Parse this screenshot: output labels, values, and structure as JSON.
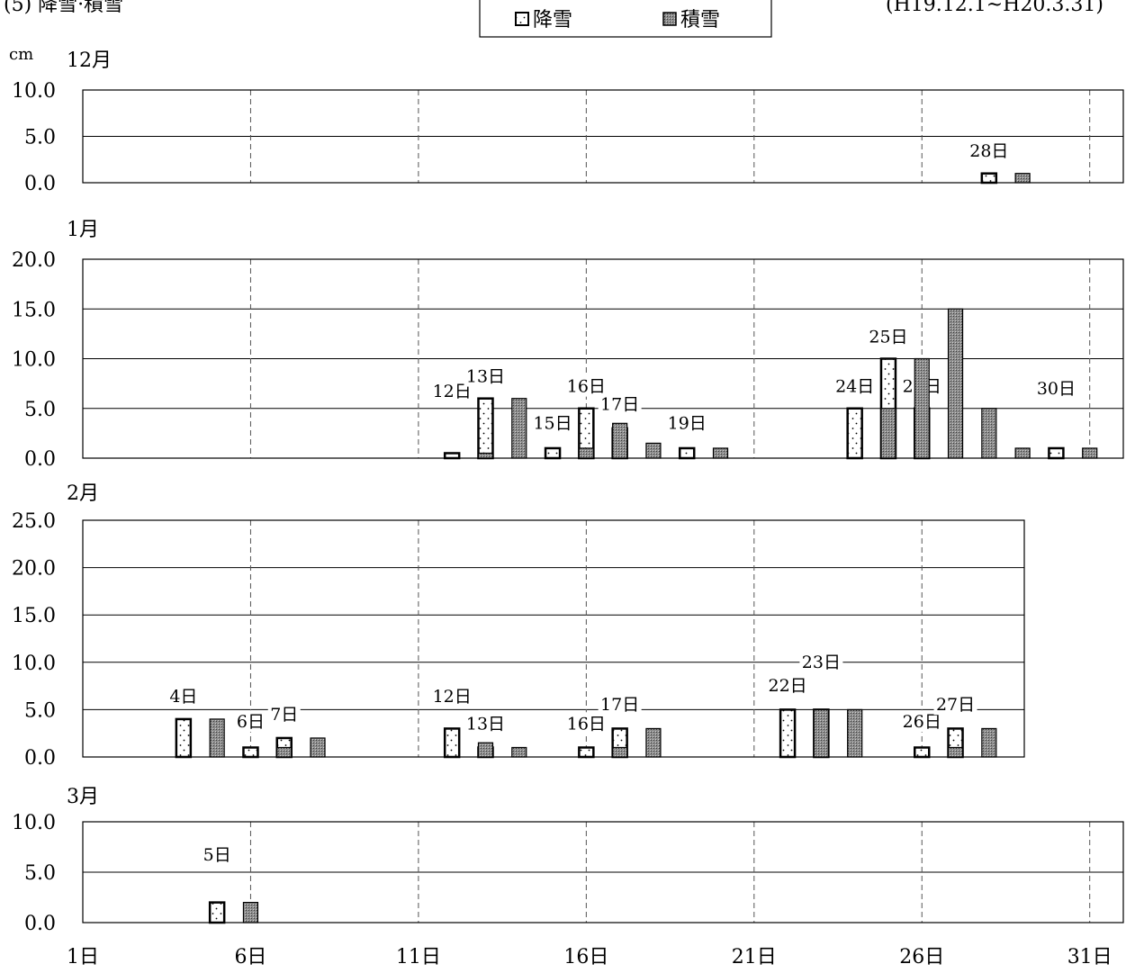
{
  "header": {
    "section_title": "(5)  降雪·積雪",
    "period": "(H19.12.1~H20.3.31)",
    "unit": "cm"
  },
  "legend": {
    "items": [
      {
        "label": "降雪",
        "kind": "snowfall"
      },
      {
        "label": "積雪",
        "kind": "snowdepth"
      }
    ]
  },
  "x_axis": {
    "ticks": [
      "1日",
      "6日",
      "11日",
      "16日",
      "21日",
      "26日",
      "31日"
    ]
  },
  "colors": {
    "snowfall_fill": "#ffffff",
    "snowdepth_fill": "#8c8c8c",
    "grid": "#000000",
    "dashed_grid": "#555555"
  },
  "chart_data": [
    {
      "type": "bar",
      "month_label": "12月",
      "days_in_month": 31,
      "ylim": [
        0,
        10
      ],
      "yticks": [
        "0.0",
        "5.0",
        "10.0"
      ],
      "series": [
        {
          "name": "降雪",
          "points": [
            {
              "day": 28,
              "value": 1
            }
          ]
        },
        {
          "name": "積雪",
          "points": [
            {
              "day": 29,
              "value": 1
            }
          ]
        }
      ],
      "annotations": [
        {
          "text": "28日",
          "day": 28,
          "value": 3.2
        }
      ]
    },
    {
      "type": "bar",
      "month_label": "1月",
      "days_in_month": 31,
      "ylim": [
        0,
        20
      ],
      "yticks": [
        "0.0",
        "5.0",
        "10.0",
        "15.0",
        "20.0"
      ],
      "series": [
        {
          "name": "降雪",
          "points": [
            {
              "day": 12,
              "value": 0.5
            },
            {
              "day": 13,
              "value": 6
            },
            {
              "day": 15,
              "value": 1
            },
            {
              "day": 16,
              "value": 5
            },
            {
              "day": 17,
              "value": 3
            },
            {
              "day": 19,
              "value": 1
            },
            {
              "day": 24,
              "value": 5
            },
            {
              "day": 25,
              "value": 10
            },
            {
              "day": 26,
              "value": 5
            },
            {
              "day": 30,
              "value": 1
            }
          ]
        },
        {
          "name": "積雪",
          "points": [
            {
              "day": 13,
              "value": 0.5
            },
            {
              "day": 14,
              "value": 6
            },
            {
              "day": 16,
              "value": 1
            },
            {
              "day": 17,
              "value": 3.5
            },
            {
              "day": 18,
              "value": 1.5
            },
            {
              "day": 20,
              "value": 1
            },
            {
              "day": 25,
              "value": 5
            },
            {
              "day": 26,
              "value": 10
            },
            {
              "day": 27,
              "value": 15
            },
            {
              "day": 28,
              "value": 5
            },
            {
              "day": 29,
              "value": 1
            },
            {
              "day": 31,
              "value": 1
            }
          ]
        }
      ],
      "annotations": [
        {
          "text": "12日",
          "day": 12,
          "value": 6.5
        },
        {
          "text": "13日",
          "day": 13,
          "value": 8
        },
        {
          "text": "15日",
          "day": 15,
          "value": 3.3
        },
        {
          "text": "16日",
          "day": 16,
          "value": 7
        },
        {
          "text": "17日",
          "day": 17,
          "value": 5.2
        },
        {
          "text": "19日",
          "day": 19,
          "value": 3.3
        },
        {
          "text": "24日",
          "day": 24,
          "value": 7
        },
        {
          "text": "25日",
          "day": 25,
          "value": 12
        },
        {
          "text": "26日",
          "day": 26,
          "value": 7
        },
        {
          "text": "30日",
          "day": 30,
          "value": 6.8
        }
      ]
    },
    {
      "type": "bar",
      "month_label": "2月",
      "days_in_month": 29,
      "ylim": [
        0,
        25
      ],
      "yticks": [
        "0.0",
        "5.0",
        "10.0",
        "15.0",
        "20.0",
        "25.0"
      ],
      "series": [
        {
          "name": "降雪",
          "points": [
            {
              "day": 4,
              "value": 4
            },
            {
              "day": 6,
              "value": 1
            },
            {
              "day": 7,
              "value": 2
            },
            {
              "day": 12,
              "value": 3
            },
            {
              "day": 13,
              "value": 1
            },
            {
              "day": 16,
              "value": 1
            },
            {
              "day": 17,
              "value": 3
            },
            {
              "day": 22,
              "value": 5
            },
            {
              "day": 23,
              "value": 5
            },
            {
              "day": 26,
              "value": 1
            },
            {
              "day": 27,
              "value": 3
            }
          ]
        },
        {
          "name": "積雪",
          "points": [
            {
              "day": 5,
              "value": 4
            },
            {
              "day": 7,
              "value": 1
            },
            {
              "day": 8,
              "value": 2
            },
            {
              "day": 13,
              "value": 1.5
            },
            {
              "day": 14,
              "value": 1
            },
            {
              "day": 17,
              "value": 1
            },
            {
              "day": 18,
              "value": 3
            },
            {
              "day": 23,
              "value": 5
            },
            {
              "day": 24,
              "value": 5
            },
            {
              "day": 27,
              "value": 1
            },
            {
              "day": 28,
              "value": 3
            }
          ]
        }
      ],
      "annotations": [
        {
          "text": "4日",
          "day": 4,
          "value": 6.2
        },
        {
          "text": "6日",
          "day": 6,
          "value": 3.5
        },
        {
          "text": "7日",
          "day": 7,
          "value": 4.3
        },
        {
          "text": "12日",
          "day": 12,
          "value": 6.2
        },
        {
          "text": "13日",
          "day": 13,
          "value": 3.3
        },
        {
          "text": "16日",
          "day": 16,
          "value": 3.3
        },
        {
          "text": "17日",
          "day": 17,
          "value": 5.3
        },
        {
          "text": "22日",
          "day": 22,
          "value": 7.3
        },
        {
          "text": "23日",
          "day": 23,
          "value": 9.8
        },
        {
          "text": "26日",
          "day": 26,
          "value": 3.5
        },
        {
          "text": "27日",
          "day": 27,
          "value": 5.3
        }
      ]
    },
    {
      "type": "bar",
      "month_label": "3月",
      "days_in_month": 31,
      "ylim": [
        0,
        10
      ],
      "yticks": [
        "0.0",
        "5.0",
        "10.0"
      ],
      "series": [
        {
          "name": "降雪",
          "points": [
            {
              "day": 5,
              "value": 2
            }
          ]
        },
        {
          "name": "積雪",
          "points": [
            {
              "day": 6,
              "value": 2
            }
          ]
        }
      ],
      "annotations": [
        {
          "text": "5日",
          "day": 5,
          "value": 6.5
        }
      ]
    }
  ]
}
